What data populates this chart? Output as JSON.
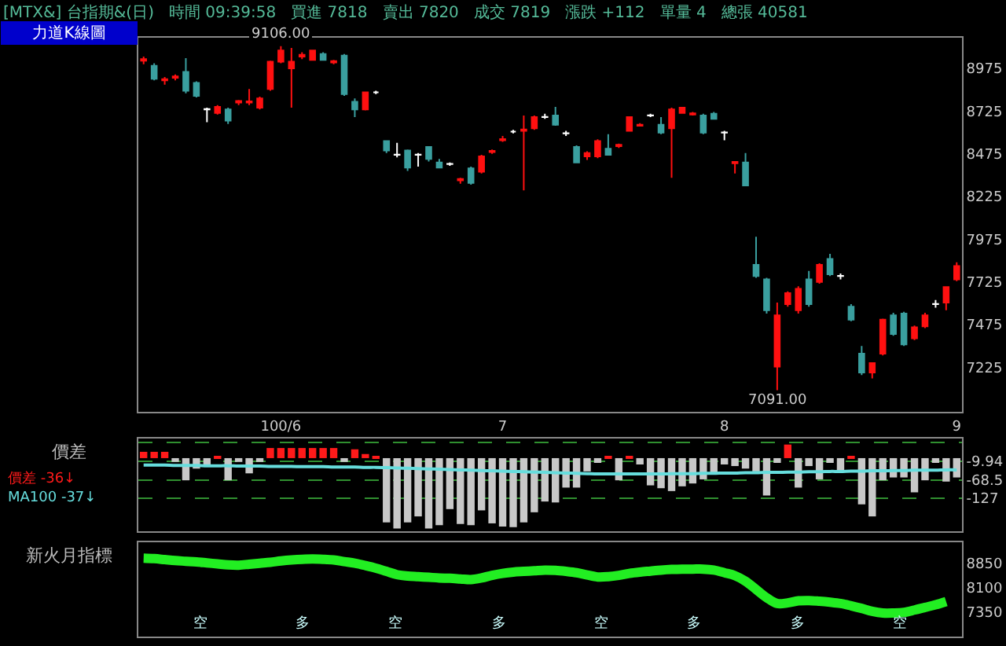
{
  "chart_data": [
    {
      "type": "candlestick",
      "title": "[MTX&] 台指期&(日)   時間 09:39:58   買進 7818   賣出 7820   成交 7819   漲跌 +112   單量 4   總張 40581",
      "ylabel": "力道K線圖",
      "categories": [
        null,
        null,
        null,
        null,
        null,
        null,
        null,
        null,
        null,
        null,
        null,
        null,
        null,
        "100/6",
        null,
        null,
        null,
        null,
        null,
        null,
        null,
        null,
        null,
        null,
        null,
        null,
        null,
        null,
        null,
        null,
        null,
        null,
        null,
        null,
        "7",
        null,
        null,
        null,
        null,
        null,
        null,
        null,
        null,
        null,
        null,
        null,
        null,
        null,
        null,
        null,
        null,
        null,
        null,
        null,
        null,
        "8",
        null,
        null,
        null,
        null,
        null,
        null,
        null,
        null,
        null,
        null,
        null,
        null,
        null,
        null,
        null,
        null,
        null,
        null,
        null,
        null,
        null,
        "9"
      ],
      "colors": [
        "#ff1010",
        "#3a9f9f",
        "#ff1010",
        "#ff1010",
        "#3a9f9f",
        "#3a9f9f",
        "#ffffff",
        "#ff1010",
        "#3a9f9f",
        "#ff1010",
        "#ff1010",
        "#ff1010",
        "#ff1010",
        "#ff1010",
        "#ff1010",
        "#ff1010",
        "#ff1010",
        "#3a9f9f",
        "#ff1010",
        "#3a9f9f",
        "#3a9f9f",
        "#ff1010",
        "#ffffff",
        "#3a9f9f",
        "#ffffff",
        "#3a9f9f",
        "#ffffff",
        "#3a9f9f",
        "#3a9f9f",
        "#ffffff",
        "#ff1010",
        "#3a9f9f",
        "#ff1010",
        "#ff1010",
        "#ff1010",
        "#ffffff",
        "#ff1010",
        "#ff1010",
        "#ffffff",
        "#3a9f9f",
        "#ffffff",
        "#3a9f9f",
        "#ff1010",
        "#ff1010",
        "#3a9f9f",
        "#ff1010",
        "#ff1010",
        "#ff1010",
        "#ffffff",
        "#3a9f9f",
        "#ff1010",
        "#ff1010",
        "#ff1010",
        "#3a9f9f",
        "#3a9f9f",
        "#ffffff",
        "#ff1010",
        "#3a9f9f",
        "#3a9f9f",
        "#3a9f9f",
        "#ff1010",
        "#ff1010",
        "#ff1010",
        "#3a9f9f",
        "#ff1010",
        "#3a9f9f",
        "#ffffff",
        "#3a9f9f",
        "#3a9f9f",
        "#ff1010",
        "#ff1010",
        "#3a9f9f",
        "#3a9f9f",
        "#ff1010",
        "#ff1010",
        "#ffffff",
        "#ff1010",
        "#ff1010"
      ],
      "ohlc": [
        [
          9020,
          9045,
          9000,
          9030
        ],
        [
          8990,
          9005,
          8905,
          8915
        ],
        [
          8905,
          8925,
          8880,
          8912
        ],
        [
          8920,
          8940,
          8905,
          8928
        ],
        [
          8955,
          9035,
          8830,
          8845
        ],
        [
          8890,
          8900,
          8805,
          8815
        ],
        [
          8735,
          8745,
          8660,
          8738
        ],
        [
          8715,
          8760,
          8705,
          8750
        ],
        [
          8735,
          8745,
          8650,
          8670
        ],
        [
          8775,
          8790,
          8760,
          8785
        ],
        [
          8775,
          8855,
          8760,
          8782
        ],
        [
          8745,
          8810,
          8735,
          8800
        ],
        [
          8855,
          9020,
          8845,
          9015
        ],
        [
          9015,
          9106,
          9005,
          9080
        ],
        [
          8975,
          9095,
          8745,
          9015
        ],
        [
          9045,
          9070,
          9030,
          9055
        ],
        [
          9025,
          9085,
          9020,
          9080
        ],
        [
          9060,
          9070,
          9020,
          9025
        ],
        [
          9010,
          9025,
          9000,
          9018
        ],
        [
          9050,
          9060,
          8815,
          8825
        ],
        [
          8780,
          8800,
          8690,
          8735
        ],
        [
          8735,
          8840,
          8730,
          8835
        ],
        [
          8835,
          8845,
          8825,
          8835
        ],
        [
          8550,
          8555,
          8480,
          8495
        ],
        [
          8470,
          8540,
          8455,
          8471
        ],
        [
          8495,
          8500,
          8375,
          8395
        ],
        [
          8470,
          8480,
          8400,
          8471
        ],
        [
          8515,
          8520,
          8430,
          8445
        ],
        [
          8425,
          8445,
          8390,
          8395
        ],
        [
          8415,
          8425,
          8405,
          8416
        ],
        [
          8320,
          8335,
          8300,
          8328
        ],
        [
          8390,
          8400,
          8295,
          8305
        ],
        [
          8370,
          8470,
          8360,
          8460
        ],
        [
          8485,
          8500,
          8475,
          8492
        ],
        [
          8555,
          8580,
          8545,
          8562
        ],
        [
          8605,
          8615,
          8595,
          8605
        ],
        [
          8610,
          8700,
          8261,
          8618
        ],
        [
          8625,
          8700,
          8615,
          8690
        ],
        [
          8690,
          8710,
          8680,
          8691
        ],
        [
          8700,
          8750,
          8640,
          8645
        ],
        [
          8595,
          8610,
          8580,
          8596
        ],
        [
          8515,
          8525,
          8420,
          8425
        ],
        [
          8460,
          8490,
          8440,
          8480
        ],
        [
          8460,
          8560,
          8450,
          8550
        ],
        [
          8505,
          8590,
          8465,
          8470
        ],
        [
          8520,
          8535,
          8510,
          8528
        ],
        [
          8610,
          8695,
          8605,
          8690
        ],
        [
          8640,
          8655,
          8635,
          8645
        ],
        [
          8700,
          8710,
          8690,
          8701
        ],
        [
          8645,
          8690,
          8590,
          8600
        ],
        [
          8625,
          8745,
          8335,
          8735
        ],
        [
          8715,
          8750,
          8710,
          8745
        ],
        [
          8705,
          8720,
          8700,
          8712
        ],
        [
          8700,
          8710,
          8590,
          8600
        ],
        [
          8710,
          8720,
          8675,
          8680
        ],
        [
          8600,
          8610,
          8555,
          8601
        ],
        [
          8420,
          8430,
          8360,
          8428
        ],
        [
          8425,
          8480,
          8285,
          8290
        ],
        [
          7825,
          7990,
          7750,
          7760
        ],
        [
          7740,
          7750,
          7540,
          7560
        ],
        [
          7230,
          7605,
          7091,
          7530
        ],
        [
          7595,
          7670,
          7580,
          7660
        ],
        [
          7560,
          7700,
          7540,
          7685
        ],
        [
          7740,
          7790,
          7580,
          7595
        ],
        [
          7725,
          7835,
          7715,
          7825
        ],
        [
          7860,
          7890,
          7760,
          7770
        ],
        [
          7760,
          7775,
          7740,
          7761
        ],
        [
          7580,
          7595,
          7495,
          7505
        ],
        [
          7305,
          7350,
          7180,
          7195
        ],
        [
          7195,
          7255,
          7160,
          7250
        ],
        [
          7305,
          7510,
          7295,
          7505
        ],
        [
          7530,
          7545,
          7410,
          7420
        ],
        [
          7540,
          7550,
          7350,
          7360
        ],
        [
          7395,
          7470,
          7385,
          7460
        ],
        [
          7465,
          7545,
          7455,
          7530
        ],
        [
          7595,
          7620,
          7575,
          7596
        ],
        [
          7605,
          7700,
          7560,
          7695
        ],
        [
          7740,
          7840,
          7730,
          7819
        ]
      ],
      "ylim": [
        6965,
        9155
      ],
      "yticks": [
        7225,
        7475,
        7725,
        7975,
        8225,
        8475,
        8725,
        8975
      ],
      "annotations": [
        {
          "text": "9106.00",
          "y": 9106
        },
        {
          "text": "7091.00",
          "y": 7091
        }
      ],
      "grid": false
    },
    {
      "type": "bar",
      "title": "價差",
      "tick_labels": "y",
      "categories": [
        null,
        null,
        null,
        null,
        null,
        null,
        null,
        null,
        null,
        null,
        null,
        null,
        null,
        null,
        null,
        null,
        null,
        null,
        null,
        null,
        null,
        null,
        null,
        null,
        null,
        null,
        null,
        null,
        null,
        null,
        null,
        null,
        null,
        null,
        null,
        null,
        null,
        null,
        null,
        null,
        null,
        null,
        null,
        null,
        null,
        null,
        null,
        null,
        null,
        null,
        null,
        null,
        null,
        null,
        null,
        null,
        null,
        null,
        null,
        null,
        null,
        null,
        null,
        null,
        null,
        null,
        null,
        null,
        null,
        null,
        null,
        null,
        null,
        null,
        null,
        null,
        null,
        null
      ],
      "series": [
        {
          "name": "價差 -36↓",
          "type": "bar",
          "color": "#ff1a1a",
          "values": [
            20,
            20,
            20,
            null,
            null,
            null,
            null,
            3,
            null,
            null,
            null,
            null,
            32,
            32,
            32,
            32,
            32,
            32,
            32,
            null,
            28,
            13,
            5,
            null,
            null,
            null,
            null,
            null,
            null,
            null,
            null,
            null,
            null,
            null,
            null,
            null,
            null,
            null,
            null,
            null,
            null,
            null,
            null,
            null,
            3,
            null,
            3,
            null,
            null,
            null,
            null,
            null,
            null,
            null,
            null,
            null,
            null,
            null,
            null,
            null,
            null,
            43,
            null,
            null,
            null,
            null,
            null,
            5,
            null,
            null,
            null,
            null,
            null,
            null,
            null,
            null,
            null,
            null
          ]
        },
        {
          "type": "bar",
          "color": "#c8c8c8",
          "values": [
            null,
            null,
            null,
            -12,
            -70,
            -33,
            -27,
            null,
            -70,
            -12,
            -48,
            -12,
            null,
            null,
            null,
            null,
            null,
            null,
            null,
            -12,
            null,
            null,
            null,
            -203,
            -222,
            -203,
            -184,
            -222,
            -212,
            -161,
            -208,
            -212,
            -165,
            -206,
            -216,
            -218,
            -203,
            -171,
            -137,
            -140,
            -93,
            -93,
            -42,
            -15,
            null,
            -70,
            null,
            -20,
            -86,
            -95,
            -104,
            -89,
            -80,
            -67,
            -52,
            -20,
            -25,
            -33,
            -42,
            -118,
            -15,
            null,
            -93,
            -25,
            -67,
            -15,
            -42,
            null,
            -146,
            -184,
            -70,
            -61,
            -61,
            -108,
            -70,
            -15,
            -74,
            -61
          ]
        },
        {
          "name": "MA100 -37↓",
          "type": "line",
          "color": "#66dddd",
          "values": [
            -22,
            -22,
            -22,
            -23,
            -23,
            -23,
            -24,
            -24,
            -24,
            -25,
            -25,
            -25,
            -26,
            -26,
            -26,
            -27,
            -27,
            -27,
            -28,
            -28,
            -28,
            -29,
            -29,
            -30,
            -31,
            -32,
            -33,
            -34,
            -35,
            -36,
            -37,
            -38,
            -39,
            -40,
            -41,
            -42,
            -43,
            -44,
            -45,
            -46,
            -47,
            -48,
            -49,
            -50,
            -50,
            -50,
            -50,
            -50,
            -50,
            -50,
            -49,
            -49,
            -49,
            -48,
            -48,
            -47,
            -47,
            -46,
            -46,
            -45,
            -45,
            -44,
            -44,
            -43,
            -43,
            -42,
            -42,
            -41,
            -41,
            -40,
            -40,
            -39,
            -39,
            -38,
            -38,
            -38,
            -37,
            -37
          ]
        }
      ],
      "ylim": [
        -231,
        62
      ],
      "yticks": [
        {
          "value": 48.6,
          "label": null
        },
        -9.94,
        -68.5,
        -127
      ],
      "grid": "y",
      "legend": "left"
    },
    {
      "type": "line",
      "title": "新火月指標",
      "tick_labels": "y",
      "categories": [
        null,
        null,
        null,
        null,
        null,
        null,
        null,
        null,
        null,
        null,
        null,
        null,
        null,
        null,
        null,
        null,
        null,
        null,
        null,
        null,
        null,
        null,
        null,
        null,
        null,
        null,
        null,
        null,
        null,
        null,
        null,
        null,
        null,
        null,
        null,
        null,
        null,
        null,
        null,
        null,
        null,
        null,
        null,
        null,
        null,
        null,
        null,
        null,
        null,
        null,
        null,
        null,
        null,
        null,
        null,
        null,
        null,
        null,
        null,
        null,
        null,
        null,
        null,
        null,
        null,
        null,
        null,
        null,
        null,
        null,
        null,
        null,
        null,
        null,
        null,
        null,
        null,
        null
      ],
      "series": [
        {
          "color": "#22ee22",
          "values": [
            9004,
            8990,
            8960,
            8930,
            8910,
            8890,
            8860,
            8830,
            8800,
            8790,
            8820,
            8850,
            8880,
            8920,
            8950,
            8970,
            8980,
            8970,
            8950,
            8900,
            8850,
            8780,
            8700,
            8600,
            8500,
            8460,
            8440,
            8420,
            8400,
            8390,
            8370,
            8350,
            8400,
            8480,
            8540,
            8580,
            8600,
            8620,
            8640,
            8630,
            8600,
            8560,
            8490,
            8430,
            8440,
            8480,
            8540,
            8580,
            8610,
            8640,
            8660,
            8670,
            8670,
            8670,
            8640,
            8560,
            8470,
            8300,
            8050,
            7800,
            7620,
            7640,
            7700,
            7710,
            7690,
            7660,
            7620,
            7550,
            7470,
            7380,
            7330,
            7330,
            7350,
            7420,
            7500,
            7580,
            7680,
            null
          ]
        }
      ],
      "ylim": [
        6610,
        9490
      ],
      "yticks": [
        7350,
        8100,
        8850
      ],
      "annotations": [
        "空",
        "多",
        "空",
        "多",
        "空",
        "多",
        "多",
        "空"
      ],
      "grid": false
    }
  ]
}
